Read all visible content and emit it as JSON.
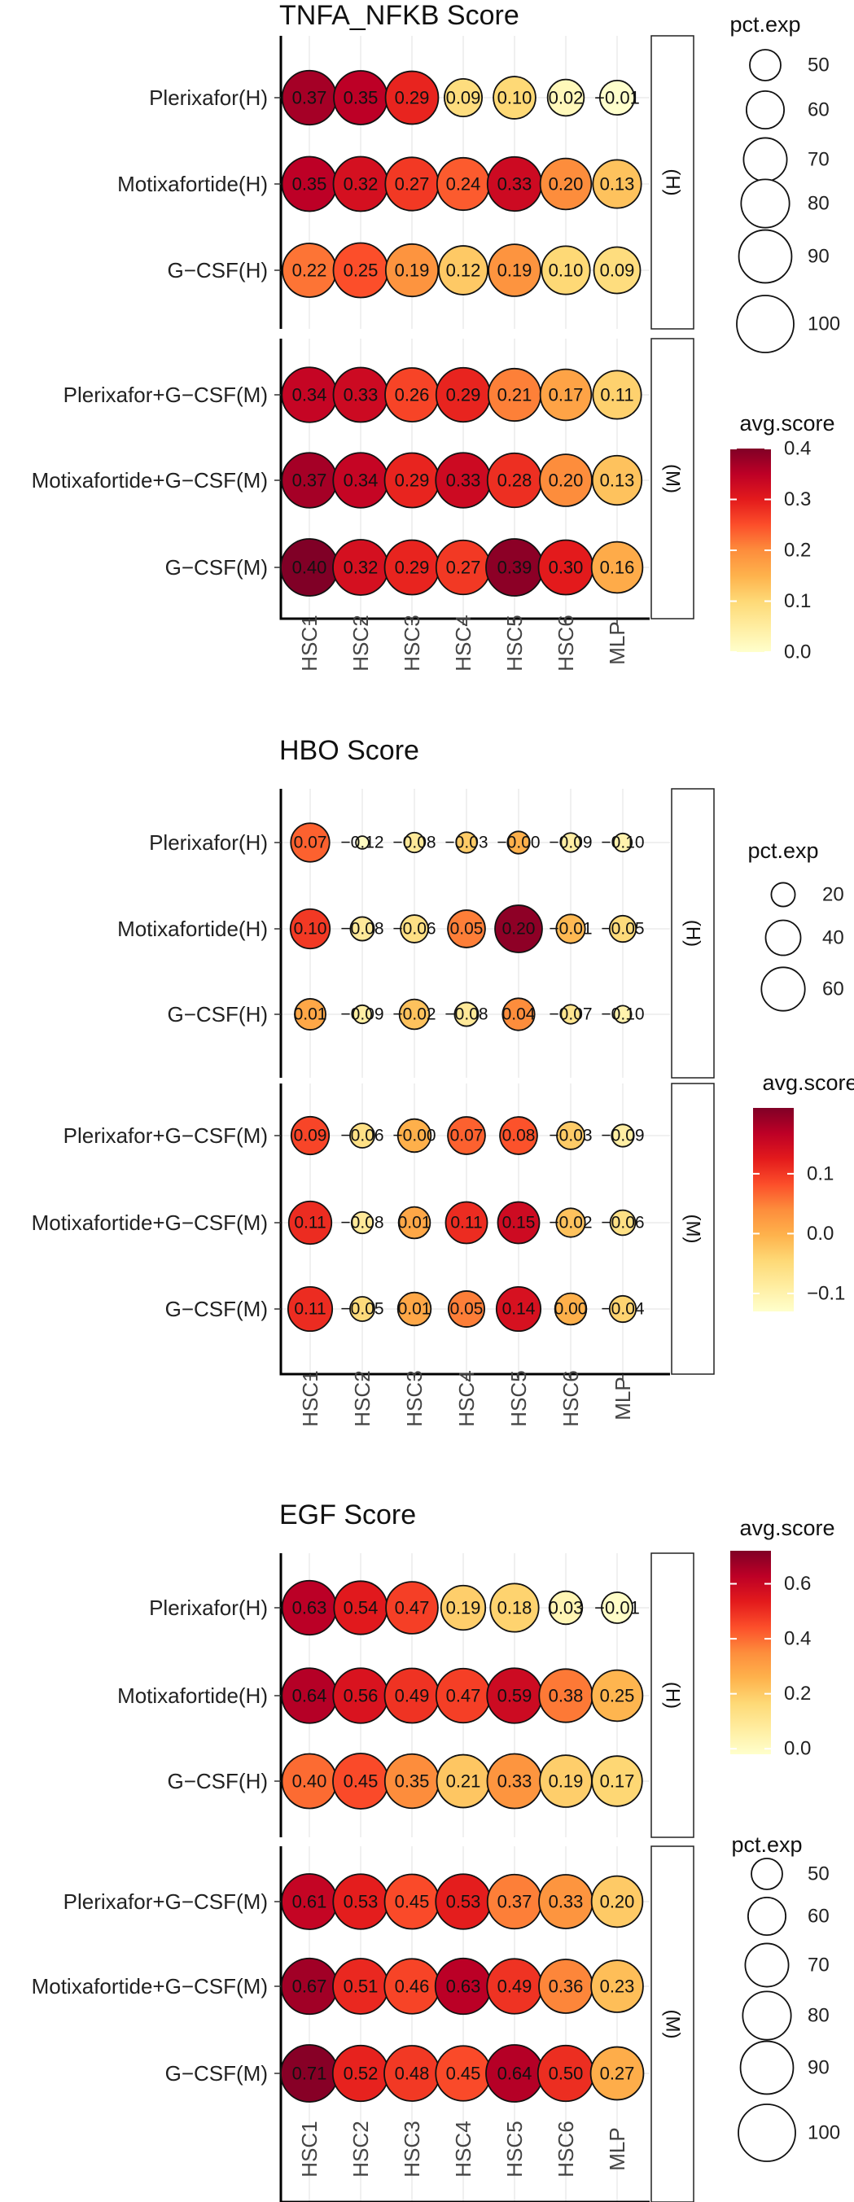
{
  "chart_data": [
    {
      "type": "dot",
      "title": "TNFA_NFKB Score",
      "columns": [
        "HSC1",
        "HSC2",
        "HSC3",
        "HSC4",
        "HSC5",
        "HSC6",
        "MLP"
      ],
      "facets": [
        {
          "label": "(H)",
          "rows": [
            {
              "name": "Plerixafor(H)",
              "values": [
                0.37,
                0.35,
                0.29,
                0.09,
                0.1,
                0.02,
                -0.01
              ],
              "labels": [
                "0.37",
                "0.35",
                "0.29",
                "0.09",
                "0.10",
                "0.02",
                "−0.01"
              ],
              "pct": [
                93,
                92,
                90,
                60,
                68,
                58,
                55
              ]
            },
            {
              "name": "Motixafortide(H)",
              "values": [
                0.35,
                0.32,
                0.27,
                0.24,
                0.33,
                0.2,
                0.13
              ],
              "labels": [
                "0.35",
                "0.32",
                "0.27",
                "0.24",
                "0.33",
                "0.20",
                "0.13"
              ],
              "pct": [
                94,
                94,
                91,
                89,
                93,
                86,
                80
              ]
            },
            {
              "name": "G−CSF(H)",
              "values": [
                0.22,
                0.25,
                0.19,
                0.12,
                0.19,
                0.1,
                0.09
              ],
              "labels": [
                "0.22",
                "0.25",
                "0.19",
                "0.12",
                "0.19",
                "0.10",
                "0.09"
              ],
              "pct": [
                92,
                94,
                89,
                81,
                88,
                80,
                76
              ]
            }
          ]
        },
        {
          "label": "(M)",
          "rows": [
            {
              "name": "Plerixafor+G−CSF(M)",
              "values": [
                0.34,
                0.33,
                0.26,
                0.29,
                0.21,
                0.17,
                0.11
              ],
              "labels": [
                "0.34",
                "0.33",
                "0.26",
                "0.29",
                "0.21",
                "0.17",
                "0.11"
              ],
              "pct": [
                95,
                94,
                92,
                93,
                89,
                86,
                80
              ]
            },
            {
              "name": "Motixafortide+G−CSF(M)",
              "values": [
                0.37,
                0.34,
                0.29,
                0.33,
                0.28,
                0.2,
                0.13
              ],
              "labels": [
                "0.37",
                "0.34",
                "0.29",
                "0.33",
                "0.28",
                "0.20",
                "0.13"
              ],
              "pct": [
                95,
                95,
                94,
                95,
                93,
                88,
                82
              ]
            },
            {
              "name": "G−CSF(M)",
              "values": [
                0.4,
                0.32,
                0.29,
                0.27,
                0.39,
                0.3,
                0.16
              ],
              "labels": [
                "0.40",
                "0.32",
                "0.29",
                "0.27",
                "0.39",
                "0.30",
                "0.16"
              ],
              "pct": [
                100,
                96,
                94,
                93,
                100,
                94,
                86
              ]
            }
          ]
        }
      ],
      "color_range": [
        0.0,
        0.4
      ],
      "color_legend": {
        "title": "avg.score",
        "ticks": [
          0.4,
          0.3,
          0.2,
          0.1,
          0.0
        ],
        "labels": [
          "0.4",
          "0.3",
          "0.2",
          "0.1",
          "0.0"
        ]
      },
      "size_range": [
        50,
        100
      ],
      "size_legend": {
        "title": "pct.exp",
        "values": [
          50,
          60,
          70,
          80,
          90,
          100
        ],
        "labels": [
          "50",
          "60",
          "70",
          "80",
          "90",
          "100"
        ]
      },
      "legend_order": "size-first"
    },
    {
      "type": "dot",
      "title": "HBO Score",
      "columns": [
        "HSC1",
        "HSC2",
        "HSC3",
        "HSC4",
        "HSC5",
        "HSC6",
        "MLP"
      ],
      "facets": [
        {
          "label": "(H)",
          "rows": [
            {
              "name": "Plerixafor(H)",
              "values": [
                0.07,
                -0.12,
                -0.08,
                -0.03,
                -0.0,
                -0.09,
                -0.1
              ],
              "labels": [
                "0.07",
                "−0.12",
                "−0.08",
                "−0.03",
                "−0.00",
                "−0.09",
                "−0.10"
              ],
              "pct": [
                48,
                8,
                15,
                16,
                18,
                14,
                13
              ]
            },
            {
              "name": "Motixafortide(H)",
              "values": [
                0.1,
                -0.08,
                -0.06,
                0.05,
                0.2,
                -0.01,
                -0.05
              ],
              "labels": [
                "0.10",
                "−0.08",
                "−0.06",
                "0.05",
                "0.20",
                "−0.01",
                "−0.05"
              ],
              "pct": [
                50,
                20,
                26,
                45,
                70,
                28,
                24
              ]
            },
            {
              "name": "G−CSF(H)",
              "values": [
                0.01,
                -0.09,
                -0.02,
                -0.08,
                0.04,
                -0.07,
                -0.1
              ],
              "labels": [
                "0.01",
                "−0.09",
                "−0.02",
                "−0.08",
                "0.04",
                "−0.07",
                "−0.10"
              ],
              "pct": [
                32,
                13,
                30,
                20,
                34,
                14,
                12
              ]
            }
          ]
        },
        {
          "label": "(M)",
          "rows": [
            {
              "name": "Plerixafor+G−CSF(M)",
              "values": [
                0.09,
                -0.06,
                -0.0,
                0.07,
                0.08,
                -0.03,
                -0.09
              ],
              "labels": [
                "0.09",
                "−0.06",
                "−0.00",
                "0.07",
                "0.08",
                "−0.03",
                "−0.09"
              ],
              "pct": [
                46,
                21,
                36,
                45,
                45,
                26,
                18
              ]
            },
            {
              "name": "Motixafortide+G−CSF(M)",
              "values": [
                0.11,
                -0.08,
                0.01,
                0.11,
                0.15,
                -0.02,
                -0.06
              ],
              "labels": [
                "0.11",
                "−0.08",
                "0.01",
                "0.11",
                "0.15",
                "−0.02",
                "−0.06"
              ],
              "pct": [
                58,
                17,
                33,
                55,
                55,
                28,
                22
              ]
            },
            {
              "name": "G−CSF(M)",
              "values": [
                0.11,
                -0.05,
                0.01,
                0.05,
                0.14,
                0.0,
                -0.04
              ],
              "labels": [
                "0.11",
                "−0.05",
                "0.01",
                "0.05",
                "0.14",
                "0.00",
                "−0.04"
              ],
              "pct": [
                62,
                21,
                36,
                42,
                62,
                33,
                24
              ]
            }
          ]
        }
      ],
      "color_range": [
        -0.13,
        0.21
      ],
      "color_legend": {
        "title": "avg.score",
        "ticks": [
          0.1,
          0.0,
          -0.1
        ],
        "labels": [
          "0.1",
          "0.0",
          "−0.1"
        ]
      },
      "size_range": [
        5,
        75
      ],
      "size_legend": {
        "title": "pct.exp",
        "values": [
          20,
          40,
          60
        ],
        "labels": [
          "20",
          "40",
          "60"
        ]
      },
      "legend_order": "size-first"
    },
    {
      "type": "dot",
      "title": "EGF Score",
      "columns": [
        "HSC1",
        "HSC2",
        "HSC3",
        "HSC4",
        "HSC5",
        "HSC6",
        "MLP"
      ],
      "facets": [
        {
          "label": "(H)",
          "rows": [
            {
              "name": "Plerixafor(H)",
              "values": [
                0.63,
                0.54,
                0.47,
                0.19,
                0.18,
                0.03,
                -0.01
              ],
              "labels": [
                "0.63",
                "0.54",
                "0.47",
                "0.19",
                "0.18",
                "0.03",
                "−0.01"
              ],
              "pct": [
                93,
                91,
                88,
                72,
                80,
                53,
                50
              ]
            },
            {
              "name": "Motixafortide(H)",
              "values": [
                0.64,
                0.56,
                0.49,
                0.47,
                0.59,
                0.38,
                0.25
              ],
              "labels": [
                "0.64",
                "0.56",
                "0.49",
                "0.47",
                "0.59",
                "0.38",
                "0.25"
              ],
              "pct": [
                95,
                95,
                94,
                93,
                95,
                91,
                86
              ]
            },
            {
              "name": "G−CSF(H)",
              "values": [
                0.4,
                0.45,
                0.35,
                0.21,
                0.33,
                0.19,
                0.17
              ],
              "labels": [
                "0.40",
                "0.45",
                "0.35",
                "0.21",
                "0.33",
                "0.19",
                "0.17"
              ],
              "pct": [
                94,
                96,
                93,
                90,
                94,
                88,
                84
              ]
            }
          ]
        },
        {
          "label": "(M)",
          "rows": [
            {
              "name": "Plerixafor+G−CSF(M)",
              "values": [
                0.61,
                0.53,
                0.45,
                0.53,
                0.37,
                0.33,
                0.2
              ],
              "labels": [
                "0.61",
                "0.53",
                "0.45",
                "0.53",
                "0.37",
                "0.33",
                "0.20"
              ],
              "pct": [
                96,
                95,
                94,
                95,
                93,
                92,
                86
              ]
            },
            {
              "name": "Motixafortide+G−CSF(M)",
              "values": [
                0.67,
                0.51,
                0.46,
                0.63,
                0.49,
                0.36,
                0.23
              ],
              "labels": [
                "0.67",
                "0.51",
                "0.46",
                "0.63",
                "0.49",
                "0.36",
                "0.23"
              ],
              "pct": [
                97,
                96,
                95,
                97,
                95,
                92,
                88
              ]
            },
            {
              "name": "G−CSF(M)",
              "values": [
                0.71,
                0.52,
                0.48,
                0.45,
                0.64,
                0.5,
                0.27
              ],
              "labels": [
                "0.71",
                "0.52",
                "0.48",
                "0.45",
                "0.64",
                "0.50",
                "0.27"
              ],
              "pct": [
                100,
                97,
                96,
                95,
                100,
                97,
                90
              ]
            }
          ]
        }
      ],
      "color_range": [
        -0.02,
        0.72
      ],
      "color_legend": {
        "title": "avg.score",
        "ticks": [
          0.6,
          0.4,
          0.2,
          0.0
        ],
        "labels": [
          "0.6",
          "0.4",
          "0.2",
          "0.0"
        ]
      },
      "size_range": [
        50,
        100
      ],
      "size_legend": {
        "title": "pct.exp",
        "values": [
          50,
          60,
          70,
          80,
          90,
          100
        ],
        "labels": [
          "50",
          "60",
          "70",
          "80",
          "90",
          "100"
        ]
      },
      "legend_order": "color-first"
    }
  ]
}
